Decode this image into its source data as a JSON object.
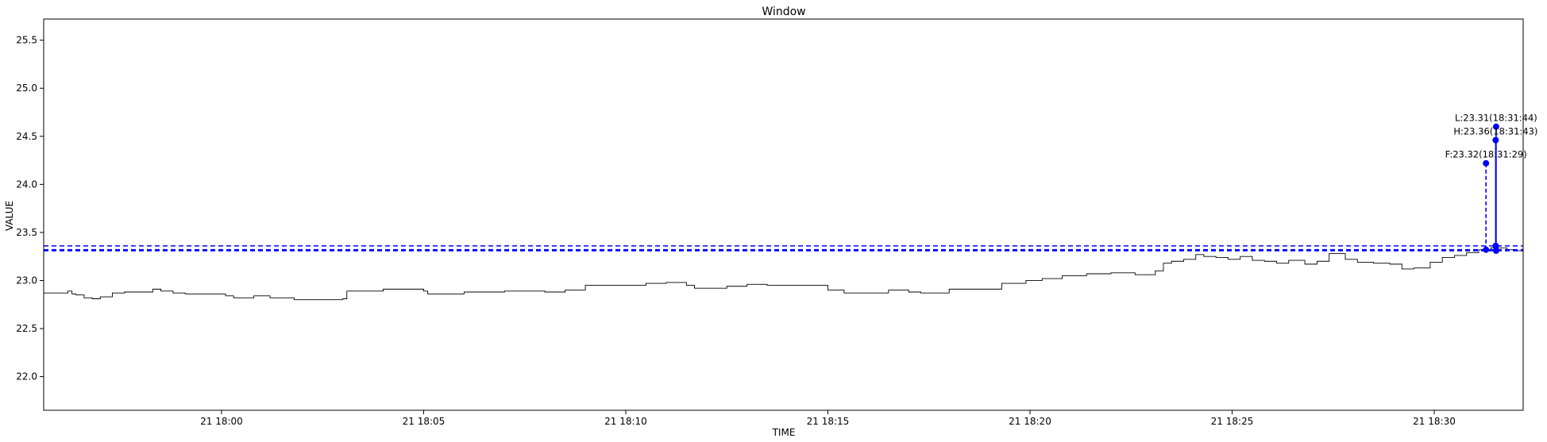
{
  "chart_data": {
    "type": "line",
    "title": "Window",
    "xlabel": "TIME",
    "ylabel": "VALUE",
    "ylim": [
      21.65,
      25.72
    ],
    "xlim_minutes": [
      -4.4,
      32.2
    ],
    "y_ticks": [
      "22.0",
      "22.5",
      "23.0",
      "23.5",
      "24.0",
      "24.5",
      "25.0",
      "25.5"
    ],
    "y_tick_values": [
      22.0,
      22.5,
      23.0,
      23.5,
      24.0,
      24.5,
      25.0,
      25.5
    ],
    "x_ticks": [
      "21 18:00",
      "21 18:05",
      "21 18:10",
      "21 18:15",
      "21 18:20",
      "21 18:25",
      "21 18:30"
    ],
    "x_tick_minutes": [
      0,
      5,
      10,
      15,
      20,
      25,
      30
    ],
    "x_axis_note": "minutes after 21 18:00",
    "grid": false,
    "series": [
      {
        "color": "#000000",
        "style": "solid",
        "x": [
          -4.4,
          -3.9,
          -3.8,
          -3.7,
          -3.6,
          -3.4,
          -3.2,
          -3.0,
          -2.7,
          -2.4,
          -2.0,
          -1.7,
          -1.5,
          -1.2,
          -0.9,
          -0.5,
          -0.2,
          0.1,
          0.3,
          0.8,
          1.2,
          1.8,
          2.4,
          3.0,
          3.1,
          4.0,
          5.0,
          5.1,
          6.0,
          7.0,
          8.0,
          8.5,
          9.0,
          9.5,
          10.0,
          10.5,
          11.0,
          11.5,
          11.7,
          12.5,
          13.0,
          13.5,
          14.0,
          14.6,
          15.0,
          15.4,
          16.0,
          16.5,
          17.0,
          17.3,
          18.0,
          18.8,
          19.3,
          19.9,
          20.3,
          20.8,
          21.4,
          22.0,
          22.6,
          23.1,
          23.3,
          23.5,
          23.8,
          24.1,
          24.3,
          24.6,
          24.9,
          25.2,
          25.5,
          25.8,
          26.1,
          26.4,
          26.8,
          27.1,
          27.4,
          27.8,
          28.1,
          28.5,
          28.9,
          29.2,
          29.5,
          29.9,
          30.2,
          30.5,
          30.8,
          31.1,
          31.4,
          31.6,
          31.8,
          32.0,
          32.2
        ],
        "y": [
          22.87,
          22.87,
          22.89,
          22.86,
          22.85,
          22.82,
          22.81,
          22.83,
          22.87,
          22.88,
          22.88,
          22.91,
          22.89,
          22.87,
          22.86,
          22.86,
          22.86,
          22.84,
          22.82,
          22.84,
          22.82,
          22.8,
          22.8,
          22.81,
          22.89,
          22.91,
          22.89,
          22.86,
          22.88,
          22.89,
          22.88,
          22.9,
          22.95,
          22.95,
          22.95,
          22.97,
          22.98,
          22.95,
          22.92,
          22.94,
          22.96,
          22.95,
          22.95,
          22.95,
          22.9,
          22.87,
          22.87,
          22.9,
          22.88,
          22.87,
          22.91,
          22.91,
          22.97,
          23.0,
          23.02,
          23.05,
          23.07,
          23.08,
          23.06,
          23.1,
          23.18,
          23.2,
          23.22,
          23.27,
          23.25,
          23.24,
          23.22,
          23.25,
          23.21,
          23.2,
          23.18,
          23.21,
          23.17,
          23.2,
          23.28,
          23.22,
          23.19,
          23.18,
          23.17,
          23.12,
          23.13,
          23.19,
          23.24,
          23.26,
          23.29,
          23.32,
          23.34,
          23.34,
          23.32,
          23.31,
          23.29
        ]
      }
    ],
    "hlines": [
      {
        "y": 23.36,
        "color": "#0000ff",
        "style": "dashed"
      },
      {
        "y": 23.32,
        "color": "#0000ff",
        "style": "dashed"
      },
      {
        "y": 23.31,
        "color": "#0000ff",
        "style": "dashed"
      }
    ],
    "markers": [
      {
        "x": 31.28,
        "y_low": 23.32,
        "y_high": 24.22,
        "label": "F:23.32(18:31:29)",
        "line": "dashed",
        "color": "#0000ff"
      },
      {
        "x": 31.52,
        "y_low": 23.36,
        "y_high": 24.46,
        "label": "H:23.36(18:31:43)",
        "line": "solid",
        "color": "#0000ff"
      },
      {
        "x": 31.53,
        "y_low": 23.31,
        "y_high": 24.6,
        "label": "L:23.31(18:31:44)",
        "line": "solid",
        "color": "#0000ff"
      }
    ]
  }
}
